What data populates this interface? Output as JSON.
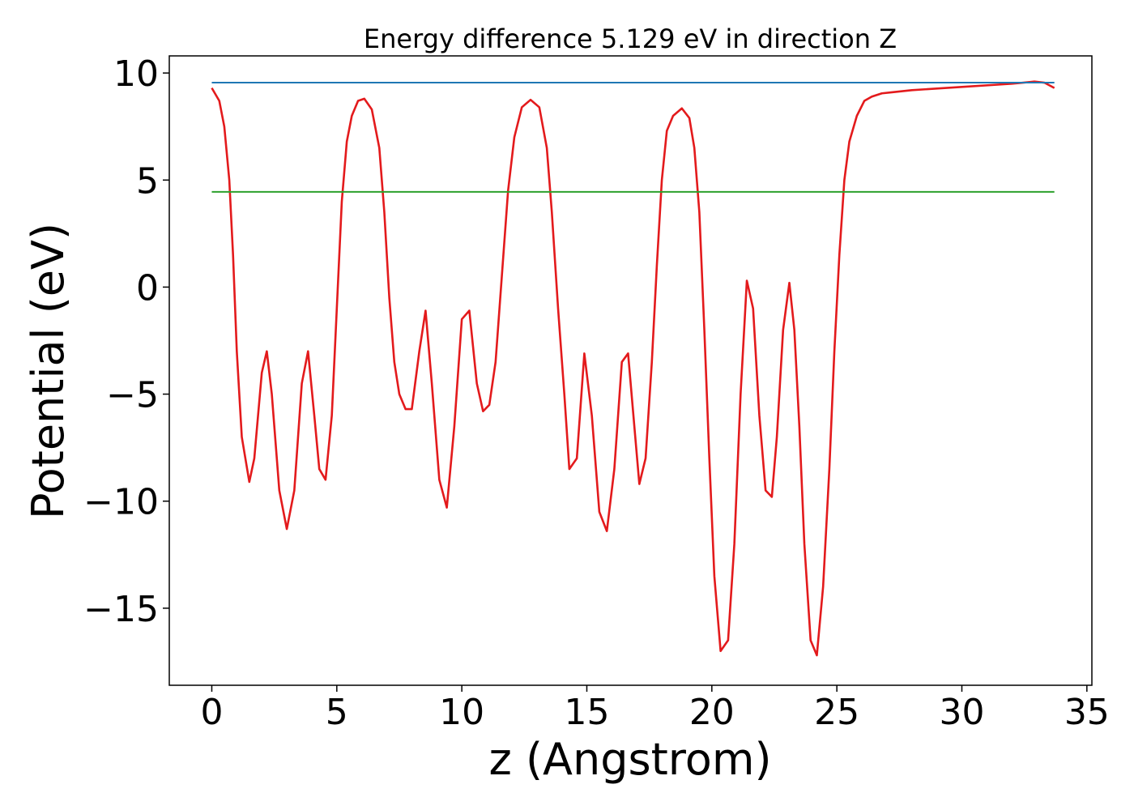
{
  "chart_data": {
    "type": "line",
    "title": "Energy difference 5.129 eV in direction Z",
    "xlabel": "z (Angstrom)",
    "ylabel": "Potential (eV)",
    "xlim": [
      -1.7,
      35.2
    ],
    "ylim": [
      -18.6,
      10.8
    ],
    "xticks": [
      0,
      5,
      10,
      15,
      20,
      25,
      30,
      35
    ],
    "xtick_labels": [
      "0",
      "5",
      "10",
      "15",
      "20",
      "25",
      "30",
      "35"
    ],
    "yticks": [
      10,
      5,
      0,
      -5,
      -10,
      -15
    ],
    "ytick_labels": [
      "10",
      "5",
      "0",
      "−5",
      "−10",
      "−15"
    ],
    "grid": false,
    "series": [
      {
        "name": "potential",
        "color": "#e31a1c",
        "x": [
          0,
          0.3,
          0.5,
          0.7,
          0.85,
          1.0,
          1.2,
          1.5,
          1.7,
          2.0,
          2.2,
          2.4,
          2.7,
          3.0,
          3.3,
          3.6,
          3.85,
          4.1,
          4.3,
          4.55,
          4.8,
          5.0,
          5.2,
          5.4,
          5.6,
          5.85,
          6.1,
          6.4,
          6.7,
          6.9,
          7.1,
          7.3,
          7.5,
          7.75,
          8.0,
          8.3,
          8.55,
          8.8,
          9.1,
          9.4,
          9.7,
          10.0,
          10.3,
          10.6,
          10.85,
          11.1,
          11.35,
          11.6,
          11.85,
          12.1,
          12.4,
          12.75,
          13.1,
          13.4,
          13.6,
          13.85,
          14.1,
          14.3,
          14.6,
          14.9,
          15.2,
          15.5,
          15.8,
          16.1,
          16.4,
          16.65,
          16.9,
          17.1,
          17.35,
          17.6,
          17.8,
          18.0,
          18.2,
          18.45,
          18.8,
          19.1,
          19.3,
          19.5,
          19.7,
          19.9,
          20.1,
          20.35,
          20.65,
          20.9,
          21.15,
          21.4,
          21.65,
          21.9,
          22.15,
          22.4,
          22.6,
          22.85,
          23.1,
          23.3,
          23.5,
          23.7,
          23.95,
          24.2,
          24.45,
          24.7,
          24.9,
          25.1,
          25.3,
          25.5,
          25.8,
          26.1,
          26.4,
          26.8,
          27.2,
          28.0,
          30.0,
          32.0,
          32.9,
          33.3,
          33.7
        ],
        "values": [
          9.3,
          8.7,
          7.5,
          5.0,
          1.5,
          -3.0,
          -7.0,
          -9.1,
          -8.0,
          -4.0,
          -3.0,
          -5.0,
          -9.5,
          -11.3,
          -9.5,
          -4.5,
          -3.0,
          -6.0,
          -8.5,
          -9.0,
          -6.0,
          -1.0,
          4.0,
          6.8,
          8.0,
          8.7,
          8.8,
          8.3,
          6.5,
          3.5,
          -0.5,
          -3.5,
          -5.0,
          -5.7,
          -5.7,
          -3.0,
          -1.1,
          -4.5,
          -9.0,
          -10.3,
          -6.5,
          -1.5,
          -1.1,
          -4.5,
          -5.8,
          -5.5,
          -3.5,
          0.5,
          4.5,
          7.0,
          8.4,
          8.75,
          8.4,
          6.5,
          3.5,
          -1.0,
          -5.0,
          -8.5,
          -8.0,
          -3.1,
          -6.0,
          -10.5,
          -11.4,
          -8.5,
          -3.5,
          -3.1,
          -6.5,
          -9.2,
          -8.0,
          -3.5,
          1.0,
          5.0,
          7.3,
          8.0,
          8.35,
          7.9,
          6.5,
          3.5,
          -2.0,
          -8.0,
          -13.5,
          -17.0,
          -16.5,
          -12.0,
          -5.0,
          0.3,
          -1.0,
          -6.0,
          -9.5,
          -9.8,
          -7.0,
          -2.0,
          0.2,
          -2.0,
          -6.5,
          -12.0,
          -16.5,
          -17.2,
          -14.0,
          -8.5,
          -3.0,
          1.5,
          5.0,
          6.8,
          8.0,
          8.7,
          8.9,
          9.05,
          9.1,
          9.2,
          9.35,
          9.5,
          9.6,
          9.55,
          9.3
        ]
      },
      {
        "name": "vacuum-level",
        "color": "#1f77b4",
        "x": [
          0,
          33.7
        ],
        "values": [
          9.55,
          9.55
        ]
      },
      {
        "name": "fermi-level",
        "color": "#2ca02c",
        "x": [
          0,
          33.7
        ],
        "values": [
          4.45,
          4.45
        ]
      }
    ]
  }
}
